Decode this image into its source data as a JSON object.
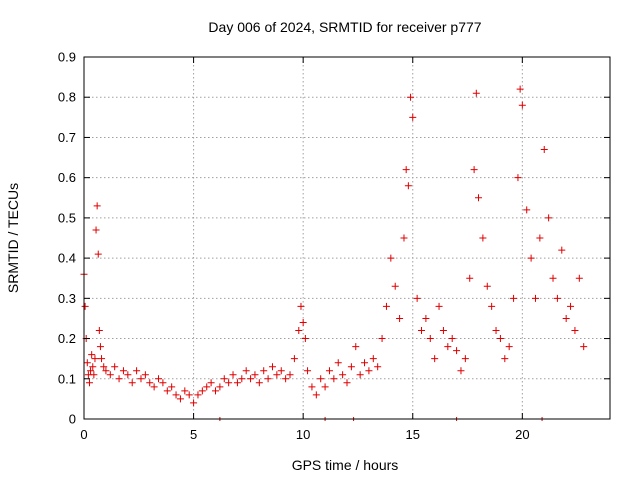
{
  "chart_data": {
    "type": "scatter",
    "title": "Day 006 of 2024, SRMTID for receiver p777",
    "xlabel": "GPS time / hours",
    "ylabel": "SRMTID / TECUs",
    "xlim": [
      0,
      24
    ],
    "ylim": [
      0,
      0.9
    ],
    "x_ticks": [
      0,
      5,
      10,
      15,
      20
    ],
    "x_tick_labels": [
      "0",
      "5",
      "10",
      "15",
      "20"
    ],
    "y_ticks": [
      0,
      0.1,
      0.2,
      0.3,
      0.4,
      0.5,
      0.6,
      0.7,
      0.8,
      0.9
    ],
    "y_tick_labels": [
      "0",
      "0.1",
      "0.2",
      "0.3",
      "0.4",
      "0.5",
      "0.6",
      "0.7",
      "0.8",
      "0.9"
    ],
    "grid": true,
    "marker": "plus",
    "color": "#e00000",
    "series": [
      {
        "name": "p777",
        "x": [
          0.0,
          0.05,
          0.1,
          0.15,
          0.2,
          0.25,
          0.3,
          0.35,
          0.4,
          0.45,
          0.5,
          0.55,
          0.6,
          0.65,
          0.7,
          0.75,
          0.8,
          0.9,
          1.0,
          1.2,
          1.4,
          1.6,
          1.8,
          2.0,
          2.2,
          2.4,
          2.6,
          2.8,
          3.0,
          3.2,
          3.4,
          3.6,
          3.8,
          4.0,
          4.2,
          4.4,
          4.6,
          4.8,
          5.0,
          5.2,
          5.4,
          5.6,
          5.8,
          6.0,
          6.2,
          6.4,
          6.6,
          6.8,
          7.0,
          7.2,
          7.4,
          7.6,
          7.8,
          8.0,
          8.2,
          8.4,
          8.6,
          8.8,
          9.0,
          9.2,
          9.4,
          9.6,
          9.8,
          9.9,
          10.0,
          10.1,
          10.2,
          10.4,
          10.6,
          10.8,
          11.0,
          11.2,
          11.4,
          11.6,
          11.8,
          12.0,
          12.2,
          12.4,
          12.6,
          12.8,
          13.0,
          13.2,
          13.4,
          13.6,
          13.8,
          14.0,
          14.2,
          14.4,
          14.6,
          14.7,
          14.8,
          14.9,
          15.0,
          15.2,
          15.4,
          15.6,
          15.8,
          16.0,
          16.2,
          16.4,
          16.6,
          16.8,
          17.0,
          17.2,
          17.4,
          17.6,
          17.8,
          17.9,
          18.0,
          18.2,
          18.4,
          18.6,
          18.8,
          19.0,
          19.2,
          19.4,
          19.6,
          19.8,
          19.9,
          20.0,
          20.2,
          20.4,
          20.6,
          20.8,
          21.0,
          21.2,
          21.4,
          21.6,
          21.8,
          22.0,
          22.2,
          22.4,
          22.6,
          22.8
        ],
        "y": [
          0.36,
          0.28,
          0.2,
          0.14,
          0.11,
          0.09,
          0.12,
          0.16,
          0.13,
          0.11,
          0.15,
          0.47,
          0.53,
          0.41,
          0.22,
          0.18,
          0.15,
          0.13,
          0.12,
          0.11,
          0.13,
          0.1,
          0.12,
          0.11,
          0.09,
          0.12,
          0.1,
          0.11,
          0.09,
          0.08,
          0.1,
          0.09,
          0.07,
          0.08,
          0.06,
          0.05,
          0.07,
          0.06,
          0.04,
          0.06,
          0.07,
          0.08,
          0.09,
          0.07,
          0.08,
          0.1,
          0.09,
          0.11,
          0.09,
          0.1,
          0.12,
          0.1,
          0.11,
          0.09,
          0.12,
          0.1,
          0.13,
          0.11,
          0.12,
          0.1,
          0.11,
          0.15,
          0.22,
          0.28,
          0.24,
          0.2,
          0.12,
          0.08,
          0.06,
          0.1,
          0.08,
          0.12,
          0.1,
          0.14,
          0.11,
          0.09,
          0.13,
          0.18,
          0.11,
          0.14,
          0.12,
          0.15,
          0.13,
          0.2,
          0.28,
          0.4,
          0.33,
          0.25,
          0.45,
          0.62,
          0.58,
          0.8,
          0.75,
          0.3,
          0.22,
          0.25,
          0.2,
          0.15,
          0.28,
          0.22,
          0.18,
          0.2,
          0.17,
          0.12,
          0.15,
          0.35,
          0.62,
          0.81,
          0.55,
          0.45,
          0.33,
          0.28,
          0.22,
          0.2,
          0.15,
          0.18,
          0.3,
          0.6,
          0.82,
          0.78,
          0.52,
          0.4,
          0.3,
          0.45,
          0.67,
          0.5,
          0.35,
          0.3,
          0.42,
          0.25,
          0.28,
          0.22,
          0.35,
          0.18
        ]
      }
    ],
    "zero_markers_x": [
      6.2,
      11.0,
      12.3,
      17.0,
      20.9
    ]
  }
}
